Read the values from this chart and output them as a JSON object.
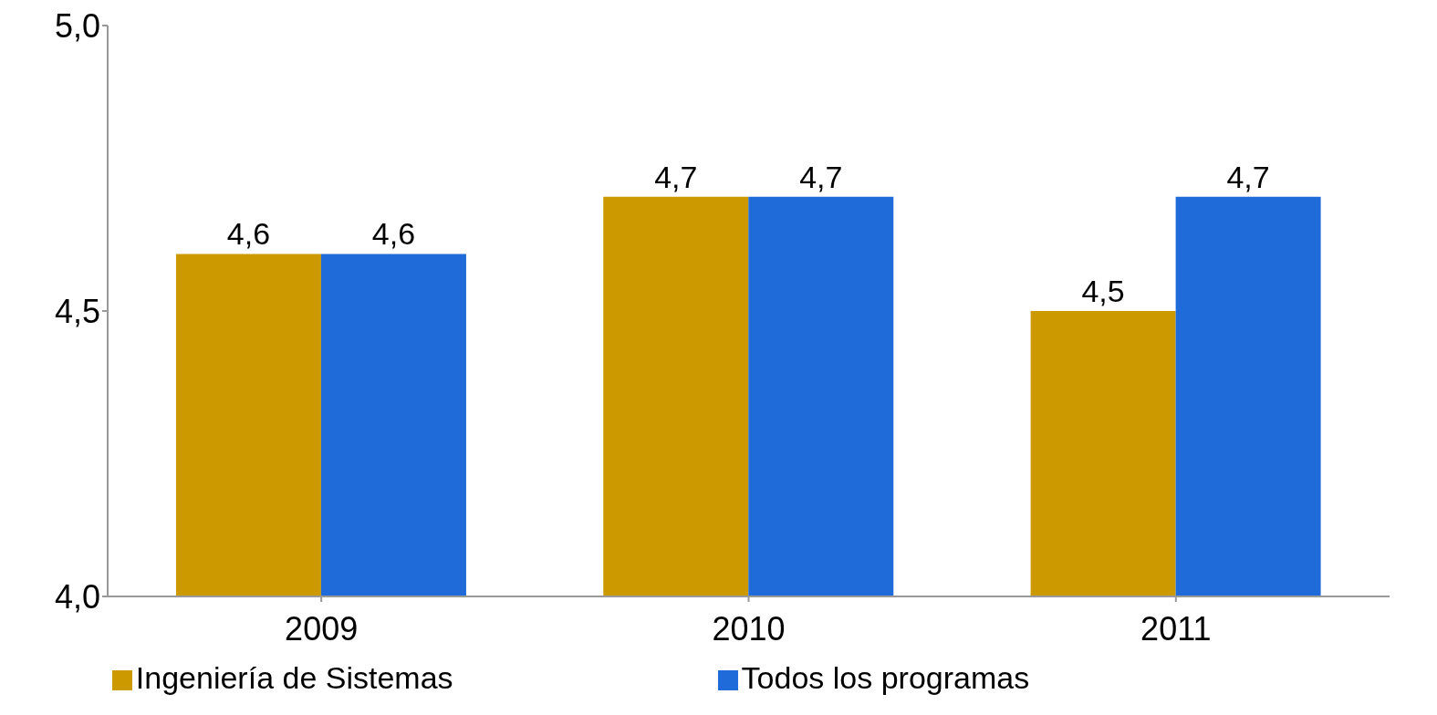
{
  "chart_data": {
    "type": "bar",
    "categories": [
      "2009",
      "2010",
      "2011"
    ],
    "series": [
      {
        "name": "Ingeniería de Sistemas",
        "color": "#cc9900",
        "values": [
          4.6,
          4.7,
          4.5
        ],
        "value_labels": [
          "4,6",
          "4,7",
          "4,5"
        ]
      },
      {
        "name": "Todos los programas",
        "color": "#1f6bd9",
        "values": [
          4.6,
          4.7,
          4.7
        ],
        "value_labels": [
          "4,6",
          "4,7",
          "4,7"
        ]
      }
    ],
    "ylim": [
      4,
      5
    ],
    "yticks": [
      {
        "value": 4,
        "label": "4,0"
      },
      {
        "value": 4.5,
        "label": "4,5"
      },
      {
        "value": 5,
        "label": "5,0"
      }
    ],
    "grid": false,
    "legend": "bottom"
  }
}
